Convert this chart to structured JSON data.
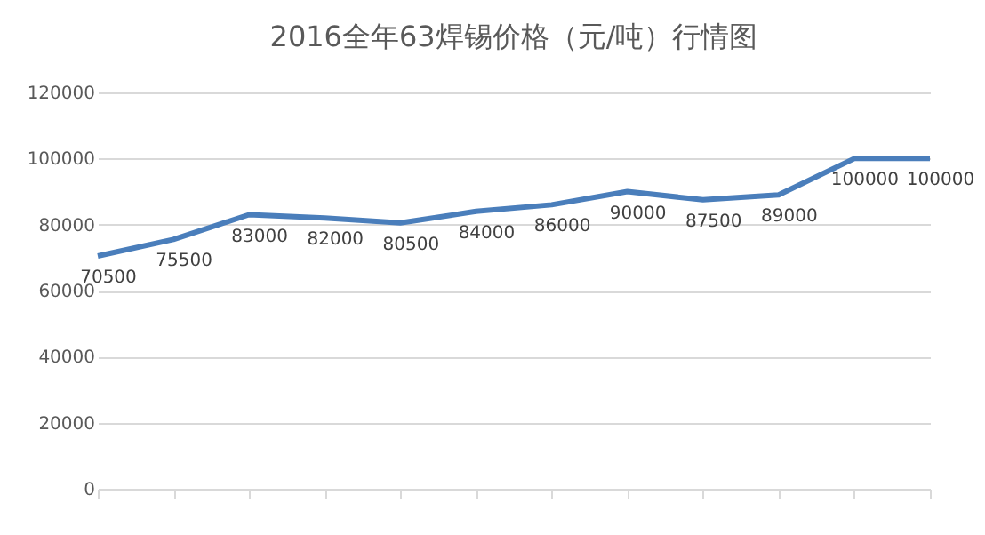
{
  "chart_data": {
    "type": "line",
    "title": "2016全年63焊锡价格（元/吨）行情图",
    "categories": [
      null,
      null,
      null,
      null,
      null,
      null,
      null,
      null,
      null,
      null,
      null,
      null
    ],
    "series": [
      {
        "color": "#4a7ebb",
        "values": [
          70500,
          75500,
          83000,
          82000,
          80500,
          84000,
          86000,
          90000,
          87500,
          89000,
          100000,
          100000
        ]
      }
    ],
    "ylim": [
      0,
      120000
    ],
    "yticks": [
      0,
      20000,
      40000,
      60000,
      80000,
      100000,
      120000
    ],
    "grid": "y",
    "data_labels": true,
    "legend": false,
    "marker": "none",
    "line_style": "solid"
  }
}
